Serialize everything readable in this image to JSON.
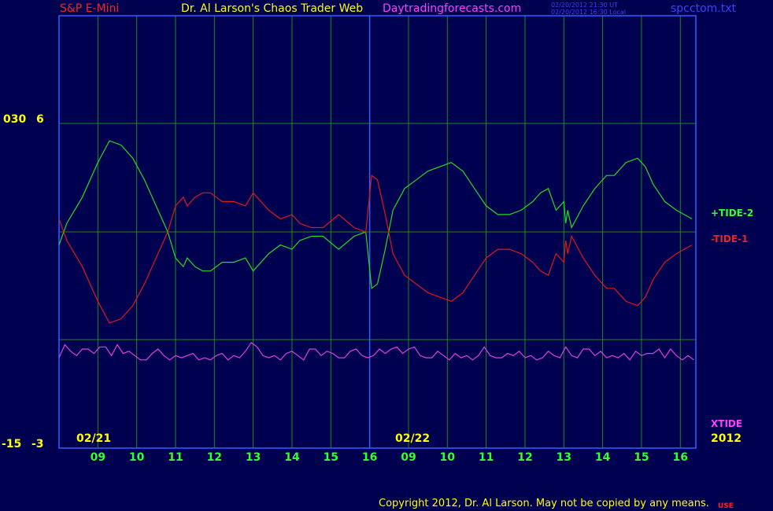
{
  "header": {
    "symbol": "S&P E-Mini",
    "title": "Dr. Al Larson's Chaos Trader Web",
    "site": "Daytradingforecasts.com",
    "stamp_ut": "02/20/2012 21:30 UT",
    "stamp_local": "02/20/2012 16:30 Local",
    "file": "spcctom.txt"
  },
  "footer": {
    "copyright": "Copyright 2012, Dr. Al Larson. May not be copied by any means.",
    "tag": "USE"
  },
  "colors": {
    "background": "#000050",
    "grid": "#1a8c1a",
    "tide2": "#22dd22",
    "tide1": "#e01818",
    "xtide": "#e040e0",
    "frame": "#3060ff",
    "yellow": "#ffff00",
    "green_text": "#33ff33",
    "red_text": "#ee2222",
    "magenta_text": "#ff40ff"
  },
  "chart_data": {
    "type": "line",
    "title": "",
    "xlabel": "",
    "ylabel": "",
    "y_ticks_upper": {
      "left": "030",
      "right": "6"
    },
    "y_ticks_lower": {
      "left": "-15",
      "right": "-3"
    },
    "x_hour_labels": [
      "09",
      "10",
      "11",
      "12",
      "13",
      "14",
      "15",
      "16",
      "09",
      "10",
      "11",
      "12",
      "13",
      "14",
      "15",
      "16"
    ],
    "date_labels": [
      "02/21",
      "02/22"
    ],
    "year_label": "2012",
    "ylim": [
      -3,
      6
    ],
    "x_hours_range": [
      0,
      16.4
    ],
    "series": [
      {
        "name": "+TIDE-2",
        "x": [
          0,
          0.2,
          0.6,
          1.0,
          1.3,
          1.6,
          1.9,
          2.2,
          2.5,
          2.8,
          3.0,
          3.2,
          3.3,
          3.5,
          3.7,
          3.9,
          4.2,
          4.5,
          4.8,
          5.0,
          5.4,
          5.7,
          6.0,
          6.2,
          6.5,
          6.8,
          7.2,
          7.6,
          7.9,
          8.05,
          8.2,
          8.4,
          8.6,
          8.9,
          9.2,
          9.5,
          9.8,
          10.1,
          10.4,
          10.7,
          11.0,
          11.3,
          11.6,
          11.9,
          12.2,
          12.4,
          12.6,
          12.8,
          13.0,
          13.05,
          13.1,
          13.2,
          13.5,
          13.8,
          14.1,
          14.3,
          14.6,
          14.9,
          15.1,
          15.3,
          15.6,
          15.9,
          16.1,
          16.3
        ],
        "y": [
          -0.3,
          0.2,
          0.8,
          1.6,
          2.1,
          2.0,
          1.7,
          1.2,
          0.6,
          0.0,
          -0.6,
          -0.8,
          -0.6,
          -0.8,
          -0.9,
          -0.9,
          -0.7,
          -0.7,
          -0.6,
          -0.9,
          -0.5,
          -0.3,
          -0.4,
          -0.2,
          -0.1,
          -0.1,
          -0.4,
          -0.1,
          0.0,
          -1.3,
          -1.2,
          -0.4,
          0.5,
          1.0,
          1.2,
          1.4,
          1.5,
          1.6,
          1.4,
          1.0,
          0.6,
          0.4,
          0.4,
          0.5,
          0.7,
          0.9,
          1.0,
          0.5,
          0.7,
          0.2,
          0.5,
          0.1,
          0.6,
          1.0,
          1.3,
          1.3,
          1.6,
          1.7,
          1.5,
          1.1,
          0.7,
          0.5,
          0.4,
          0.3
        ]
      },
      {
        "name": "-TIDE-1",
        "x": [
          0,
          0.2,
          0.6,
          1.0,
          1.3,
          1.6,
          1.9,
          2.2,
          2.5,
          2.8,
          3.0,
          3.2,
          3.3,
          3.5,
          3.7,
          3.9,
          4.2,
          4.5,
          4.8,
          5.0,
          5.4,
          5.7,
          6.0,
          6.2,
          6.5,
          6.8,
          7.2,
          7.6,
          7.9,
          8.05,
          8.2,
          8.4,
          8.6,
          8.9,
          9.2,
          9.5,
          9.8,
          10.1,
          10.4,
          10.7,
          11.0,
          11.3,
          11.6,
          11.9,
          12.2,
          12.4,
          12.6,
          12.8,
          13.0,
          13.05,
          13.1,
          13.2,
          13.5,
          13.8,
          14.1,
          14.3,
          14.6,
          14.9,
          15.1,
          15.3,
          15.6,
          15.9,
          16.1,
          16.3
        ],
        "y": [
          0.3,
          -0.2,
          -0.8,
          -1.6,
          -2.1,
          -2.0,
          -1.7,
          -1.2,
          -0.6,
          0.0,
          0.6,
          0.8,
          0.6,
          0.8,
          0.9,
          0.9,
          0.7,
          0.7,
          0.6,
          0.9,
          0.5,
          0.3,
          0.4,
          0.2,
          0.1,
          0.1,
          0.4,
          0.1,
          0.0,
          1.3,
          1.2,
          0.4,
          -0.5,
          -1.0,
          -1.2,
          -1.4,
          -1.5,
          -1.6,
          -1.4,
          -1.0,
          -0.6,
          -0.4,
          -0.4,
          -0.5,
          -0.7,
          -0.9,
          -1.0,
          -0.5,
          -0.7,
          -0.2,
          -0.5,
          -0.1,
          -0.6,
          -1.0,
          -1.3,
          -1.3,
          -1.6,
          -1.7,
          -1.5,
          -1.1,
          -0.7,
          -0.5,
          -0.4,
          -0.3
        ]
      },
      {
        "name": "XTIDE",
        "x": [
          0,
          0.15,
          0.3,
          0.45,
          0.6,
          0.75,
          0.9,
          1.05,
          1.2,
          1.35,
          1.5,
          1.65,
          1.8,
          1.95,
          2.1,
          2.25,
          2.4,
          2.55,
          2.7,
          2.85,
          3.0,
          3.15,
          3.3,
          3.45,
          3.6,
          3.75,
          3.9,
          4.05,
          4.2,
          4.35,
          4.5,
          4.65,
          4.8,
          4.95,
          5.1,
          5.25,
          5.4,
          5.55,
          5.7,
          5.85,
          6.0,
          6.15,
          6.3,
          6.45,
          6.6,
          6.75,
          6.9,
          7.05,
          7.2,
          7.35,
          7.5,
          7.65,
          7.8,
          7.95,
          8.1,
          8.25,
          8.4,
          8.55,
          8.7,
          8.85,
          9.0,
          9.15,
          9.3,
          9.45,
          9.6,
          9.75,
          9.9,
          10.05,
          10.2,
          10.35,
          10.5,
          10.65,
          10.8,
          10.95,
          11.1,
          11.25,
          11.4,
          11.55,
          11.7,
          11.85,
          12.0,
          12.15,
          12.3,
          12.45,
          12.6,
          12.75,
          12.9,
          13.05,
          13.2,
          13.35,
          13.5,
          13.65,
          13.8,
          13.95,
          14.1,
          14.25,
          14.4,
          14.55,
          14.7,
          14.85,
          15.0,
          15.15,
          15.3,
          15.45,
          15.6,
          15.75,
          15.9,
          16.05,
          16.2,
          16.35
        ],
        "y": [
          -2.9,
          -2.6,
          -2.75,
          -2.85,
          -2.7,
          -2.7,
          -2.8,
          -2.65,
          -2.65,
          -2.85,
          -2.6,
          -2.8,
          -2.75,
          -2.85,
          -2.95,
          -2.95,
          -2.8,
          -2.7,
          -2.85,
          -2.95,
          -2.85,
          -2.9,
          -2.85,
          -2.8,
          -2.95,
          -2.9,
          -2.95,
          -2.85,
          -2.8,
          -2.95,
          -2.85,
          -2.9,
          -2.75,
          -2.55,
          -2.65,
          -2.85,
          -2.9,
          -2.85,
          -2.95,
          -2.8,
          -2.75,
          -2.85,
          -2.95,
          -2.7,
          -2.7,
          -2.85,
          -2.75,
          -2.8,
          -2.9,
          -2.9,
          -2.75,
          -2.7,
          -2.85,
          -2.9,
          -2.85,
          -2.7,
          -2.8,
          -2.7,
          -2.65,
          -2.8,
          -2.7,
          -2.65,
          -2.85,
          -2.9,
          -2.9,
          -2.75,
          -2.85,
          -2.95,
          -2.8,
          -2.9,
          -2.85,
          -2.95,
          -2.85,
          -2.65,
          -2.85,
          -2.9,
          -2.9,
          -2.8,
          -2.85,
          -2.75,
          -2.9,
          -2.85,
          -2.95,
          -2.9,
          -2.75,
          -2.85,
          -2.9,
          -2.65,
          -2.85,
          -2.9,
          -2.7,
          -2.7,
          -2.85,
          -2.75,
          -2.9,
          -2.85,
          -2.9,
          -2.8,
          -2.95,
          -2.75,
          -2.85,
          -2.8,
          -2.8,
          -2.7,
          -2.9,
          -2.7,
          -2.85,
          -2.95,
          -2.85,
          -2.95
        ]
      }
    ]
  }
}
